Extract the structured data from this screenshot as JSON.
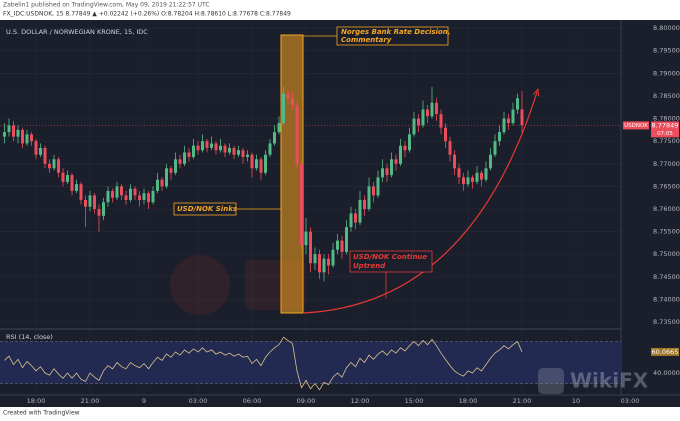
{
  "header": {
    "line1": "Zabelin1 published on TradingView.com, May 09, 2019 21:22:57 UTC",
    "line2": "FX_IDC:USDNOK, 15  8.77849 ▲ +0.02242 (+0.26%) O:8.78204 H:8.78610 L:8.77678 C:8.77849"
  },
  "footer": "Created with TradingView",
  "watermark": "WikiFX",
  "chart_data": [
    {
      "type": "candlestick",
      "title": "U.S. DOLLAR / NORWEGIAN KRONE, 15, IDC",
      "up_color": "#53b987",
      "down_color": "#eb4d5c",
      "grid": true,
      "xlim": [
        -1,
        137
      ],
      "xticks": [
        {
          "value": 7,
          "label": "18:00"
        },
        {
          "value": 19,
          "label": "21:00"
        },
        {
          "value": 31,
          "label": "9"
        },
        {
          "value": 43,
          "label": "03:00"
        },
        {
          "value": 55,
          "label": "06:00"
        },
        {
          "value": 67,
          "label": "09:00"
        },
        {
          "value": 79,
          "label": "12:00"
        },
        {
          "value": 91,
          "label": "15:00"
        },
        {
          "value": 103,
          "label": "18:00"
        },
        {
          "value": 115,
          "label": "21:00"
        },
        {
          "value": 127,
          "label": "10"
        },
        {
          "value": 139,
          "label": "03:00"
        }
      ],
      "ylim": [
        8.7339,
        8.8018
      ],
      "yticks": [
        {
          "value": 8.735,
          "label": "8.73500"
        },
        {
          "value": 8.74,
          "label": "8.74000"
        },
        {
          "value": 8.745,
          "label": "8.74500"
        },
        {
          "value": 8.75,
          "label": "8.75000"
        },
        {
          "value": 8.755,
          "label": "8.75500"
        },
        {
          "value": 8.76,
          "label": "8.76000"
        },
        {
          "value": 8.765,
          "label": "8.76500"
        },
        {
          "value": 8.77,
          "label": "8.77000"
        },
        {
          "value": 8.775,
          "label": "8.77500"
        },
        {
          "value": 8.78,
          "label": "8.78000"
        },
        {
          "value": 8.785,
          "label": "8.78500"
        },
        {
          "value": 8.79,
          "label": "8.79000"
        },
        {
          "value": 8.795,
          "label": "8.79500"
        },
        {
          "value": 8.8,
          "label": "8.80000"
        }
      ],
      "last_label": {
        "symbol": "USDNOK",
        "price": "8.77849",
        "countdown": "07:05"
      },
      "annotations": {
        "event": [
          "Norges Bank Rate Decision,",
          "Commentary"
        ],
        "sinks": "USD/NOK Sinks",
        "uptrend": [
          "USD/NOK Continue",
          "Uptrend"
        ]
      },
      "candles": [
        [
          8.776,
          8.779,
          8.7745,
          8.777
        ],
        [
          8.777,
          8.78,
          8.776,
          8.7785
        ],
        [
          8.7785,
          8.7795,
          8.775,
          8.776
        ],
        [
          8.776,
          8.7785,
          8.7745,
          8.7775
        ],
        [
          8.7775,
          8.778,
          8.7735,
          8.7745
        ],
        [
          8.7745,
          8.7775,
          8.774,
          8.7765
        ],
        [
          8.7765,
          8.777,
          8.774,
          8.775
        ],
        [
          8.775,
          8.7755,
          8.771,
          8.772
        ],
        [
          8.772,
          8.7745,
          8.7715,
          8.7735
        ],
        [
          8.7735,
          8.774,
          8.769,
          8.77
        ],
        [
          8.77,
          8.771,
          8.768,
          8.769
        ],
        [
          8.769,
          8.772,
          8.7685,
          8.771
        ],
        [
          8.771,
          8.7715,
          8.767,
          8.768
        ],
        [
          8.768,
          8.769,
          8.765,
          8.766
        ],
        [
          8.766,
          8.7685,
          8.7655,
          8.7675
        ],
        [
          8.7675,
          8.768,
          8.763,
          8.764
        ],
        [
          8.764,
          8.7665,
          8.7635,
          8.7655
        ],
        [
          8.7655,
          8.766,
          8.761,
          8.762
        ],
        [
          8.762,
          8.763,
          8.756,
          8.7605
        ],
        [
          8.7605,
          8.764,
          8.7595,
          8.763
        ],
        [
          8.763,
          8.7635,
          8.759,
          8.76
        ],
        [
          8.76,
          8.761,
          8.755,
          8.7585
        ],
        [
          8.7585,
          8.7625,
          8.7575,
          8.7615
        ],
        [
          8.7615,
          8.765,
          8.7605,
          8.764
        ],
        [
          8.764,
          8.7645,
          8.7615,
          8.7625
        ],
        [
          8.7625,
          8.766,
          8.762,
          8.765
        ],
        [
          8.765,
          8.7655,
          8.762,
          8.763
        ],
        [
          8.763,
          8.764,
          8.761,
          8.762
        ],
        [
          8.762,
          8.7655,
          8.7615,
          8.7645
        ],
        [
          8.7645,
          8.765,
          8.762,
          8.763
        ],
        [
          8.763,
          8.764,
          8.7605,
          8.762
        ],
        [
          8.762,
          8.7645,
          8.761,
          8.7635
        ],
        [
          8.7635,
          8.764,
          8.76,
          8.7615
        ],
        [
          8.7615,
          8.765,
          8.761,
          8.764
        ],
        [
          8.764,
          8.768,
          8.7635,
          8.7665
        ],
        [
          8.7665,
          8.767,
          8.764,
          8.765
        ],
        [
          8.765,
          8.77,
          8.7645,
          8.769
        ],
        [
          8.769,
          8.7695,
          8.7665,
          8.768
        ],
        [
          8.768,
          8.7725,
          8.7675,
          8.771
        ],
        [
          8.771,
          8.772,
          8.769,
          8.77
        ],
        [
          8.77,
          8.774,
          8.7695,
          8.7725
        ],
        [
          8.7725,
          8.7735,
          8.7705,
          8.7715
        ],
        [
          8.7715,
          8.7755,
          8.771,
          8.774
        ],
        [
          8.774,
          8.775,
          8.772,
          8.773
        ],
        [
          8.773,
          8.7765,
          8.7725,
          8.775
        ],
        [
          8.775,
          8.7755,
          8.7725,
          8.7735
        ],
        [
          8.7735,
          8.776,
          8.773,
          8.7745
        ],
        [
          8.7745,
          8.775,
          8.772,
          8.773
        ],
        [
          8.773,
          8.7755,
          8.7725,
          8.774
        ],
        [
          8.774,
          8.7745,
          8.7715,
          8.7725
        ],
        [
          8.7725,
          8.7745,
          8.772,
          8.7735
        ],
        [
          8.7735,
          8.774,
          8.771,
          8.772
        ],
        [
          8.772,
          8.774,
          8.7715,
          8.773
        ],
        [
          8.773,
          8.7735,
          8.77,
          8.7715
        ],
        [
          8.7715,
          8.773,
          8.7705,
          8.772
        ],
        [
          8.772,
          8.7725,
          8.767,
          8.769
        ],
        [
          8.769,
          8.772,
          8.7685,
          8.771
        ],
        [
          8.771,
          8.7715,
          8.7665,
          8.768
        ],
        [
          8.768,
          8.773,
          8.7675,
          8.772
        ],
        [
          8.772,
          8.7755,
          8.7715,
          8.7745
        ],
        [
          8.7745,
          8.7785,
          8.774,
          8.777
        ],
        [
          8.777,
          8.7805,
          8.7765,
          8.779
        ],
        [
          8.779,
          8.787,
          8.7785,
          8.7855
        ],
        [
          8.7855,
          8.7865,
          8.783,
          8.7845
        ],
        [
          8.7845,
          8.786,
          8.782,
          8.783
        ],
        [
          8.783,
          8.784,
          8.769,
          8.77
        ],
        [
          8.77,
          8.771,
          8.75,
          8.752
        ],
        [
          8.752,
          8.758,
          8.75,
          8.755
        ],
        [
          8.755,
          8.756,
          8.746,
          8.748
        ],
        [
          8.748,
          8.7515,
          8.7465,
          8.75
        ],
        [
          8.75,
          8.751,
          8.7445,
          8.746
        ],
        [
          8.746,
          8.75,
          8.744,
          8.749
        ],
        [
          8.749,
          8.75,
          8.7455,
          8.7475
        ],
        [
          8.7475,
          8.7525,
          8.747,
          8.751
        ],
        [
          8.751,
          8.7545,
          8.75,
          8.753
        ],
        [
          8.753,
          8.754,
          8.749,
          8.7505
        ],
        [
          8.7505,
          8.7575,
          8.75,
          8.756
        ],
        [
          8.756,
          8.7605,
          8.755,
          8.759
        ],
        [
          8.759,
          8.76,
          8.7555,
          8.757
        ],
        [
          8.757,
          8.764,
          8.7565,
          8.762
        ],
        [
          8.762,
          8.763,
          8.7585,
          8.76
        ],
        [
          8.76,
          8.767,
          8.7595,
          8.765
        ],
        [
          8.765,
          8.766,
          8.7615,
          8.763
        ],
        [
          8.763,
          8.7685,
          8.7625,
          8.767
        ],
        [
          8.767,
          8.771,
          8.766,
          8.769
        ],
        [
          8.769,
          8.77,
          8.766,
          8.7675
        ],
        [
          8.7675,
          8.7725,
          8.767,
          8.771
        ],
        [
          8.771,
          8.772,
          8.7685,
          8.77
        ],
        [
          8.77,
          8.7755,
          8.7695,
          8.774
        ],
        [
          8.774,
          8.775,
          8.7715,
          8.773
        ],
        [
          8.773,
          8.778,
          8.7725,
          8.7765
        ],
        [
          8.7765,
          8.7815,
          8.776,
          8.78
        ],
        [
          8.78,
          8.781,
          8.777,
          8.7785
        ],
        [
          8.7785,
          8.784,
          8.778,
          8.782
        ],
        [
          8.782,
          8.783,
          8.779,
          8.7805
        ],
        [
          8.7805,
          8.787,
          8.78,
          8.7835
        ],
        [
          8.7835,
          8.7845,
          8.7795,
          8.781
        ],
        [
          8.781,
          8.782,
          8.7765,
          8.778
        ],
        [
          8.778,
          8.779,
          8.7735,
          8.775
        ],
        [
          8.775,
          8.776,
          8.7705,
          8.772
        ],
        [
          8.772,
          8.773,
          8.7675,
          8.769
        ],
        [
          8.769,
          8.77,
          8.7655,
          8.767
        ],
        [
          8.767,
          8.768,
          8.764,
          8.7655
        ],
        [
          8.7655,
          8.7685,
          8.765,
          8.767
        ],
        [
          8.767,
          8.7675,
          8.7645,
          8.766
        ],
        [
          8.766,
          8.7695,
          8.7655,
          8.768
        ],
        [
          8.768,
          8.7685,
          8.765,
          8.7665
        ],
        [
          8.7665,
          8.7705,
          8.766,
          8.769
        ],
        [
          8.769,
          8.7735,
          8.7685,
          8.772
        ],
        [
          8.772,
          8.7765,
          8.7715,
          8.775
        ],
        [
          8.775,
          8.7785,
          8.774,
          8.777
        ],
        [
          8.777,
          8.7815,
          8.7765,
          8.78
        ],
        [
          8.78,
          8.781,
          8.7775,
          8.779
        ],
        [
          8.779,
          8.7835,
          8.7785,
          8.782
        ],
        [
          8.782,
          8.7855,
          8.781,
          8.7845
        ],
        [
          8.78204,
          8.7861,
          8.77678,
          8.77849
        ]
      ]
    },
    {
      "type": "line",
      "name": "RSI (14, close)",
      "color": "#d8c28a",
      "band_color": "#232a52",
      "ylim": [
        20,
        80
      ],
      "yticks": [
        {
          "value": 40,
          "label": "40.0000"
        }
      ],
      "levels": [
        30,
        70
      ],
      "values": [
        52,
        56,
        48,
        53,
        45,
        51,
        47,
        42,
        46,
        40,
        38,
        44,
        39,
        35,
        40,
        35,
        40,
        34,
        32,
        40,
        36,
        33,
        42,
        47,
        44,
        50,
        46,
        44,
        50,
        47,
        45,
        49,
        44,
        50,
        55,
        52,
        58,
        55,
        60,
        57,
        62,
        59,
        63,
        60,
        64,
        60,
        62,
        58,
        60,
        57,
        59,
        56,
        58,
        55,
        56,
        49,
        53,
        47,
        55,
        60,
        64,
        67,
        74,
        71,
        68,
        42,
        26,
        33,
        25,
        30,
        24,
        31,
        29,
        36,
        40,
        36,
        45,
        50,
        46,
        54,
        50,
        57,
        53,
        58,
        61,
        57,
        62,
        59,
        64,
        61,
        66,
        70,
        66,
        71,
        67,
        72,
        66,
        59,
        53,
        47,
        42,
        39,
        37,
        42,
        40,
        45,
        42,
        48,
        54,
        59,
        62,
        66,
        63,
        67,
        70,
        60.0665
      ]
    }
  ]
}
